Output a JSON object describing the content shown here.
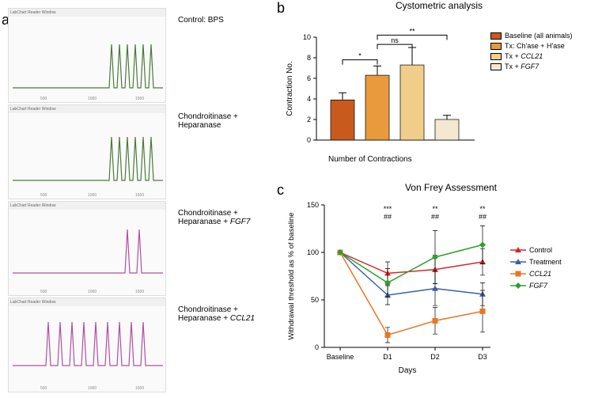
{
  "panelA": {
    "label": "a",
    "header": "LabChart Reader Window",
    "traces": [
      {
        "label": "Control: BPS",
        "color": "#4a7a3a",
        "peaks": [
          130,
          140,
          150,
          160,
          170,
          180
        ],
        "baseline": 90
      },
      {
        "label": "Chondroitinase + Heparanase",
        "color": "#4a7a3a",
        "peaks": [
          130,
          140,
          150,
          160,
          170,
          180
        ],
        "baseline": 85
      },
      {
        "label": "Chondroitinase + Heparanase + ",
        "gene": "FGF7",
        "color": "#b050a0",
        "peaks": [
          150,
          165
        ],
        "baseline": 80
      },
      {
        "label": "Chondroitinase + Heparanase + ",
        "gene": "CCL21",
        "color": "#b050a0",
        "peaks": [
          50,
          65,
          80,
          95,
          110,
          125,
          140,
          155,
          170
        ],
        "baseline": 75
      }
    ]
  },
  "panelB": {
    "label": "b",
    "title": "Cystometric analysis",
    "ylabel": "Contraction No.",
    "xlabel": "Number of Contractions",
    "ylim": [
      0,
      10
    ],
    "ytick_step": 2,
    "bars": [
      {
        "value": 3.9,
        "err": 0.7,
        "color": "#c85a1e",
        "label": "Baseline (all animals)"
      },
      {
        "value": 6.3,
        "err": 0.9,
        "color": "#e89a3c",
        "label": "Tx: Ch'ase + H'ase"
      },
      {
        "value": 7.3,
        "err": 1.7,
        "color": "#f0ce8a",
        "label": "Tx + CCL21",
        "italic": true
      },
      {
        "value": 2.0,
        "err": 0.4,
        "color": "#f5e8d0",
        "label": "Tx + FGF7",
        "italic": true
      }
    ],
    "annotations": [
      {
        "from": 0,
        "to": 1,
        "text": "*",
        "y": 7.8
      },
      {
        "from": 1,
        "to": 2,
        "text": "ns",
        "y": 9.3
      },
      {
        "from": 1,
        "to": 3,
        "text": "**",
        "y": 10.2
      }
    ]
  },
  "panelC": {
    "label": "c",
    "title": "Von Frey Assessment",
    "ylabel": "Withdrawal threshold as % of baseline",
    "xlabel": "Days",
    "xcats": [
      "Baseline",
      "D1",
      "D2",
      "D3"
    ],
    "ylim": [
      0,
      150
    ],
    "ytick_step": 50,
    "series": [
      {
        "name": "Control",
        "color": "#d62728",
        "marker": "triangle",
        "values": [
          100,
          78,
          82,
          90
        ],
        "err": [
          0,
          12,
          15,
          14
        ]
      },
      {
        "name": "Treatment",
        "color": "#3a5fa8",
        "marker": "triangle",
        "values": [
          100,
          55,
          62,
          56
        ],
        "err": [
          0,
          10,
          18,
          12
        ]
      },
      {
        "name": "CCL21",
        "color": "#e87722",
        "marker": "square",
        "values": [
          100,
          13,
          28,
          38
        ],
        "err": [
          0,
          8,
          14,
          22
        ],
        "italic": true
      },
      {
        "name": "FGF7",
        "color": "#2ca02c",
        "marker": "diamond",
        "values": [
          100,
          68,
          95,
          108
        ],
        "err": [
          0,
          15,
          28,
          20
        ],
        "italic": true
      }
    ],
    "sig_top": [
      "",
      "***",
      "**",
      "**"
    ],
    "sig_bot": [
      "",
      "##",
      "##",
      "##"
    ]
  }
}
